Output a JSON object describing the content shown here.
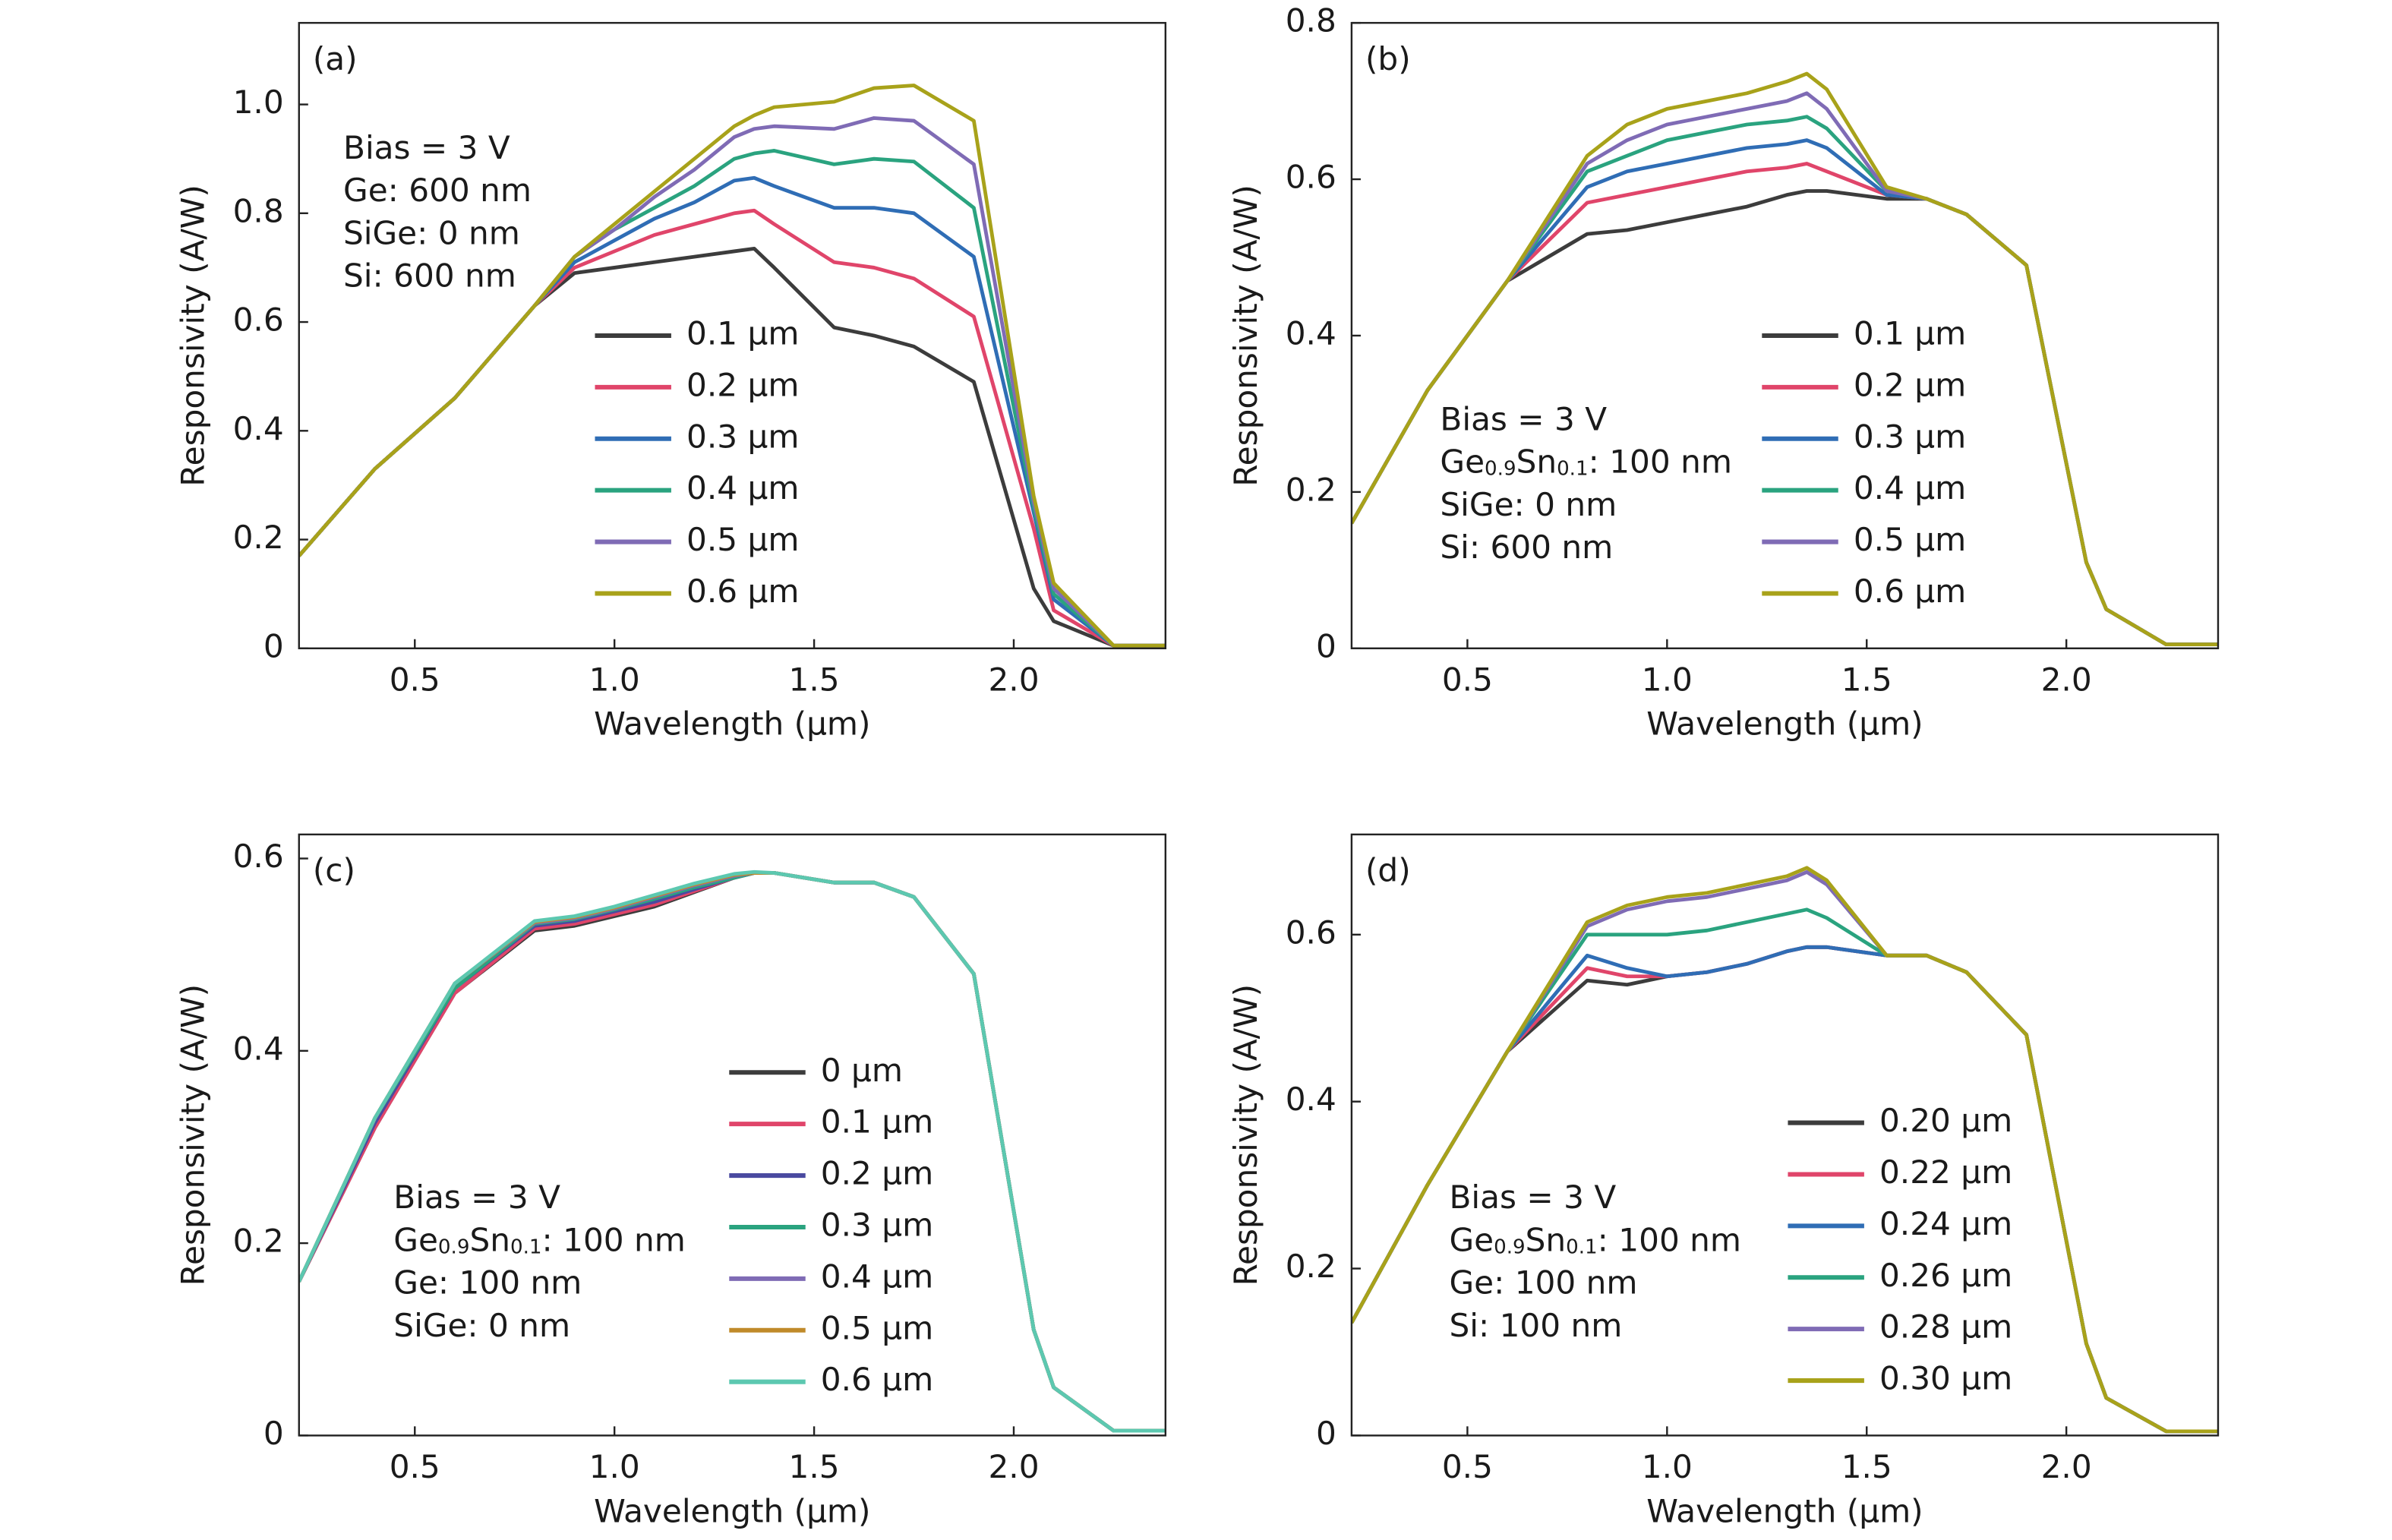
{
  "chart_data": [
    {
      "type": "line",
      "panel_label": "(a)",
      "xlabel": "Wavelength (μm)",
      "ylabel": "Responsivity (A/W)",
      "annotations": [
        [
          "Bias = 3 V"
        ],
        [
          "Ge: 600 nm"
        ],
        [
          "SiGe: 0 nm"
        ],
        [
          "Si: 600 nm"
        ]
      ],
      "xlim": [
        0.21,
        2.38
      ],
      "ylim": [
        0,
        1.15
      ],
      "xticks": [
        0.5,
        {
          "value": 1,
          "label": "1.0"
        },
        1.5,
        {
          "value": 2,
          "label": "2.0"
        }
      ],
      "yticks": [
        0,
        0.2,
        0.4,
        0.6,
        0.8,
        {
          "value": 1,
          "label": "1.0"
        }
      ],
      "x": [
        0.21,
        0.4,
        0.6,
        0.8,
        0.9,
        1.0,
        1.1,
        1.2,
        1.3,
        1.35,
        1.4,
        1.55,
        1.65,
        1.75,
        1.9,
        2.05,
        2.1,
        2.25,
        2.38
      ],
      "series": [
        {
          "name": "0.1 μm",
          "color": "#3c3c3c",
          "label_color": "#1a1a1a",
          "values": [
            0.17,
            0.33,
            0.46,
            0.63,
            0.69,
            0.7,
            0.71,
            0.72,
            0.73,
            0.735,
            0.7,
            0.59,
            0.575,
            0.555,
            0.49,
            0.11,
            0.05,
            0.005,
            0.005
          ]
        },
        {
          "name": "0.2 μm",
          "color": "#e0456a",
          "label_color": "#d3154a",
          "values": [
            0.17,
            0.33,
            0.46,
            0.63,
            0.7,
            0.73,
            0.76,
            0.78,
            0.8,
            0.805,
            0.78,
            0.71,
            0.7,
            0.68,
            0.61,
            0.22,
            0.07,
            0.005,
            0.005
          ]
        },
        {
          "name": "0.3 μm",
          "color": "#2f6db5",
          "label_color": "#2e3a8c",
          "values": [
            0.17,
            0.33,
            0.46,
            0.63,
            0.71,
            0.75,
            0.79,
            0.82,
            0.86,
            0.865,
            0.85,
            0.81,
            0.81,
            0.8,
            0.72,
            0.25,
            0.09,
            0.005,
            0.005
          ]
        },
        {
          "name": "0.4 μm",
          "color": "#2aa37f",
          "label_color": "#8a8f20",
          "values": [
            0.17,
            0.33,
            0.46,
            0.63,
            0.72,
            0.77,
            0.81,
            0.85,
            0.9,
            0.91,
            0.915,
            0.89,
            0.9,
            0.895,
            0.81,
            0.26,
            0.1,
            0.005,
            0.005
          ]
        },
        {
          "name": "0.5 μm",
          "color": "#7f6bb5",
          "label_color": "#8a7fa6",
          "values": [
            0.17,
            0.33,
            0.46,
            0.63,
            0.72,
            0.77,
            0.83,
            0.88,
            0.94,
            0.955,
            0.96,
            0.955,
            0.975,
            0.97,
            0.89,
            0.27,
            0.11,
            0.005,
            0.005
          ]
        },
        {
          "name": "0.6 μm",
          "color": "#a8a21a",
          "label_color": "#a89a1a",
          "values": [
            0.17,
            0.33,
            0.46,
            0.63,
            0.72,
            0.78,
            0.84,
            0.9,
            0.96,
            0.98,
            0.995,
            1.005,
            1.03,
            1.035,
            0.97,
            0.28,
            0.12,
            0.005,
            0.005
          ]
        }
      ]
    },
    {
      "type": "line",
      "panel_label": "(b)",
      "xlabel": "Wavelength (μm)",
      "ylabel": "Responsivity (A/W)",
      "annotations": [
        [
          "Bias = 3 V"
        ],
        [
          "Ge",
          {
            "text": "0.9",
            "sub": true
          },
          "Sn",
          {
            "text": "0.1",
            "sub": true
          },
          ": 100 nm"
        ],
        [
          "SiGe: 0 nm"
        ],
        [
          "Si: 600 nm"
        ]
      ],
      "xlim": [
        0.21,
        2.38
      ],
      "ylim": [
        0,
        0.8
      ],
      "xticks": [
        0.5,
        {
          "value": 1,
          "label": "1.0"
        },
        1.5,
        {
          "value": 2,
          "label": "2.0"
        }
      ],
      "yticks": [
        0,
        0.2,
        0.4,
        0.6,
        0.8
      ],
      "x": [
        0.21,
        0.4,
        0.6,
        0.8,
        0.9,
        1.0,
        1.1,
        1.2,
        1.3,
        1.35,
        1.4,
        1.55,
        1.65,
        1.75,
        1.9,
        2.05,
        2.1,
        2.25,
        2.38
      ],
      "series": [
        {
          "name": "0.1 μm",
          "color": "#3c3c3c",
          "label_color": "#1a1a1a",
          "values": [
            0.16,
            0.33,
            0.47,
            0.53,
            0.535,
            0.545,
            0.555,
            0.565,
            0.58,
            0.585,
            0.585,
            0.575,
            0.575,
            0.555,
            0.49,
            0.11,
            0.05,
            0.005,
            0.005
          ]
        },
        {
          "name": "0.2 μm",
          "color": "#e0456a",
          "label_color": "#d3154a",
          "values": [
            0.16,
            0.33,
            0.47,
            0.57,
            0.58,
            0.59,
            0.6,
            0.61,
            0.615,
            0.62,
            0.61,
            0.58,
            0.575,
            0.555,
            0.49,
            0.11,
            0.05,
            0.005,
            0.005
          ]
        },
        {
          "name": "0.3 μm",
          "color": "#2f6db5",
          "label_color": "#2e3a8c",
          "values": [
            0.16,
            0.33,
            0.47,
            0.59,
            0.61,
            0.62,
            0.63,
            0.64,
            0.645,
            0.65,
            0.64,
            0.58,
            0.575,
            0.555,
            0.49,
            0.11,
            0.05,
            0.005,
            0.005
          ]
        },
        {
          "name": "0.4 μm",
          "color": "#2aa37f",
          "label_color": "#8a8f20",
          "values": [
            0.16,
            0.33,
            0.47,
            0.61,
            0.63,
            0.65,
            0.66,
            0.67,
            0.675,
            0.68,
            0.665,
            0.585,
            0.575,
            0.555,
            0.49,
            0.11,
            0.05,
            0.005,
            0.005
          ]
        },
        {
          "name": "0.5 μm",
          "color": "#7f6bb5",
          "label_color": "#8a7fa6",
          "values": [
            0.16,
            0.33,
            0.47,
            0.62,
            0.65,
            0.67,
            0.68,
            0.69,
            0.7,
            0.71,
            0.69,
            0.585,
            0.575,
            0.555,
            0.49,
            0.11,
            0.05,
            0.005,
            0.005
          ]
        },
        {
          "name": "0.6 μm",
          "color": "#a8a21a",
          "label_color": "#a89a1a",
          "values": [
            0.16,
            0.33,
            0.47,
            0.63,
            0.67,
            0.69,
            0.7,
            0.71,
            0.725,
            0.735,
            0.715,
            0.59,
            0.575,
            0.555,
            0.49,
            0.11,
            0.05,
            0.005,
            0.005
          ]
        }
      ]
    },
    {
      "type": "line",
      "panel_label": "(c)",
      "xlabel": "Wavelength (μm)",
      "ylabel": "Responsivity (A/W)",
      "annotations": [
        [
          "Bias = 3 V"
        ],
        [
          "Ge",
          {
            "text": "0.9",
            "sub": true
          },
          "Sn",
          {
            "text": "0.1",
            "sub": true
          },
          ": 100 nm"
        ],
        [
          "Ge: 100 nm"
        ],
        [
          "SiGe: 0 nm"
        ]
      ],
      "xlim": [
        0.21,
        2.38
      ],
      "ylim": [
        0,
        0.625
      ],
      "xticks": [
        0.5,
        {
          "value": 1,
          "label": "1.0"
        },
        1.5,
        {
          "value": 2,
          "label": "2.0"
        }
      ],
      "yticks": [
        0,
        0.2,
        0.4,
        0.6
      ],
      "x": [
        0.21,
        0.4,
        0.6,
        0.8,
        0.9,
        1.0,
        1.1,
        1.2,
        1.3,
        1.35,
        1.4,
        1.55,
        1.65,
        1.75,
        1.9,
        2.05,
        2.1,
        2.25,
        2.38
      ],
      "series": [
        {
          "name": "0 μm",
          "color": "#3c3c3c",
          "label_color": "#1a1a1a",
          "values": [
            0.16,
            0.32,
            0.46,
            0.525,
            0.53,
            0.54,
            0.55,
            0.565,
            0.58,
            0.585,
            0.585,
            0.575,
            0.575,
            0.56,
            0.48,
            0.11,
            0.05,
            0.005,
            0.005
          ]
        },
        {
          "name": "0.1 μm",
          "color": "#e0456a",
          "label_color": "#d3154a",
          "values": [
            0.16,
            0.32,
            0.46,
            0.527,
            0.532,
            0.542,
            0.552,
            0.566,
            0.58,
            0.585,
            0.585,
            0.575,
            0.575,
            0.56,
            0.48,
            0.11,
            0.05,
            0.005,
            0.005
          ]
        },
        {
          "name": "0.2 μm",
          "color": "#4a4aa0",
          "label_color": "#2e3a8c",
          "values": [
            0.16,
            0.325,
            0.465,
            0.53,
            0.535,
            0.545,
            0.555,
            0.568,
            0.58,
            0.585,
            0.585,
            0.575,
            0.575,
            0.56,
            0.48,
            0.11,
            0.05,
            0.005,
            0.005
          ]
        },
        {
          "name": "0.3 μm",
          "color": "#2aa37f",
          "label_color": "#8a8f20",
          "values": [
            0.16,
            0.33,
            0.465,
            0.532,
            0.537,
            0.547,
            0.558,
            0.57,
            0.58,
            0.585,
            0.585,
            0.575,
            0.575,
            0.56,
            0.48,
            0.11,
            0.05,
            0.005,
            0.005
          ]
        },
        {
          "name": "0.4 μm",
          "color": "#7f6bb5",
          "label_color": "#8a7fa6",
          "values": [
            0.16,
            0.33,
            0.47,
            0.533,
            0.538,
            0.548,
            0.56,
            0.572,
            0.582,
            0.585,
            0.585,
            0.575,
            0.575,
            0.56,
            0.48,
            0.11,
            0.05,
            0.005,
            0.005
          ]
        },
        {
          "name": "0.5 μm",
          "color": "#c08a2a",
          "label_color": "#b89a1a",
          "values": [
            0.16,
            0.33,
            0.47,
            0.534,
            0.539,
            0.549,
            0.561,
            0.573,
            0.583,
            0.585,
            0.585,
            0.575,
            0.575,
            0.56,
            0.48,
            0.11,
            0.05,
            0.005,
            0.005
          ]
        },
        {
          "name": "0.6 μm",
          "color": "#5cc8b0",
          "label_color": "#3fb8a0",
          "values": [
            0.16,
            0.33,
            0.47,
            0.535,
            0.54,
            0.55,
            0.562,
            0.574,
            0.584,
            0.586,
            0.585,
            0.575,
            0.575,
            0.56,
            0.48,
            0.11,
            0.05,
            0.005,
            0.005
          ]
        }
      ]
    },
    {
      "type": "line",
      "panel_label": "(d)",
      "xlabel": "Wavelength (μm)",
      "ylabel": "Responsivity (A/W)",
      "annotations": [
        [
          "Bias = 3 V"
        ],
        [
          "Ge",
          {
            "text": "0.9",
            "sub": true
          },
          "Sn",
          {
            "text": "0.1",
            "sub": true
          },
          ": 100 nm"
        ],
        [
          "Ge: 100 nm"
        ],
        [
          "Si: 100 nm"
        ]
      ],
      "xlim": [
        0.21,
        2.38
      ],
      "ylim": [
        0,
        0.72
      ],
      "xticks": [
        0.5,
        {
          "value": 1,
          "label": "1.0"
        },
        1.5,
        {
          "value": 2,
          "label": "2.0"
        }
      ],
      "yticks": [
        0,
        0.2,
        0.4,
        0.6
      ],
      "x": [
        0.21,
        0.4,
        0.6,
        0.8,
        0.9,
        1.0,
        1.1,
        1.2,
        1.3,
        1.35,
        1.4,
        1.55,
        1.65,
        1.75,
        1.9,
        2.05,
        2.1,
        2.25,
        2.38
      ],
      "series": [
        {
          "name": "0.20 μm",
          "color": "#3c3c3c",
          "label_color": "#1a1a1a",
          "values": [
            0.135,
            0.3,
            0.46,
            0.545,
            0.54,
            0.55,
            0.555,
            0.565,
            0.58,
            0.585,
            0.585,
            0.575,
            0.575,
            0.555,
            0.48,
            0.11,
            0.045,
            0.005,
            0.005
          ]
        },
        {
          "name": "0.22 μm",
          "color": "#e0456a",
          "label_color": "#d3154a",
          "values": [
            0.135,
            0.3,
            0.46,
            0.56,
            0.55,
            0.55,
            0.555,
            0.565,
            0.58,
            0.585,
            0.585,
            0.575,
            0.575,
            0.555,
            0.48,
            0.11,
            0.045,
            0.005,
            0.005
          ]
        },
        {
          "name": "0.24 μm",
          "color": "#2f6db5",
          "label_color": "#2e3a8c",
          "values": [
            0.135,
            0.3,
            0.46,
            0.575,
            0.56,
            0.55,
            0.555,
            0.565,
            0.58,
            0.585,
            0.585,
            0.575,
            0.575,
            0.555,
            0.48,
            0.11,
            0.045,
            0.005,
            0.005
          ]
        },
        {
          "name": "0.26 μm",
          "color": "#2aa37f",
          "label_color": "#8a8f20",
          "values": [
            0.135,
            0.3,
            0.46,
            0.6,
            0.6,
            0.6,
            0.605,
            0.615,
            0.625,
            0.63,
            0.62,
            0.575,
            0.575,
            0.555,
            0.48,
            0.11,
            0.045,
            0.005,
            0.005
          ]
        },
        {
          "name": "0.28 μm",
          "color": "#7f6bb5",
          "label_color": "#8a7fa6",
          "values": [
            0.135,
            0.3,
            0.46,
            0.61,
            0.63,
            0.64,
            0.645,
            0.655,
            0.665,
            0.675,
            0.66,
            0.575,
            0.575,
            0.555,
            0.48,
            0.11,
            0.045,
            0.005,
            0.005
          ]
        },
        {
          "name": "0.30 μm",
          "color": "#a8a21a",
          "label_color": "#a89a1a",
          "values": [
            0.135,
            0.3,
            0.46,
            0.615,
            0.635,
            0.645,
            0.65,
            0.66,
            0.67,
            0.68,
            0.665,
            0.575,
            0.575,
            0.555,
            0.48,
            0.11,
            0.045,
            0.005,
            0.005
          ]
        }
      ]
    }
  ]
}
